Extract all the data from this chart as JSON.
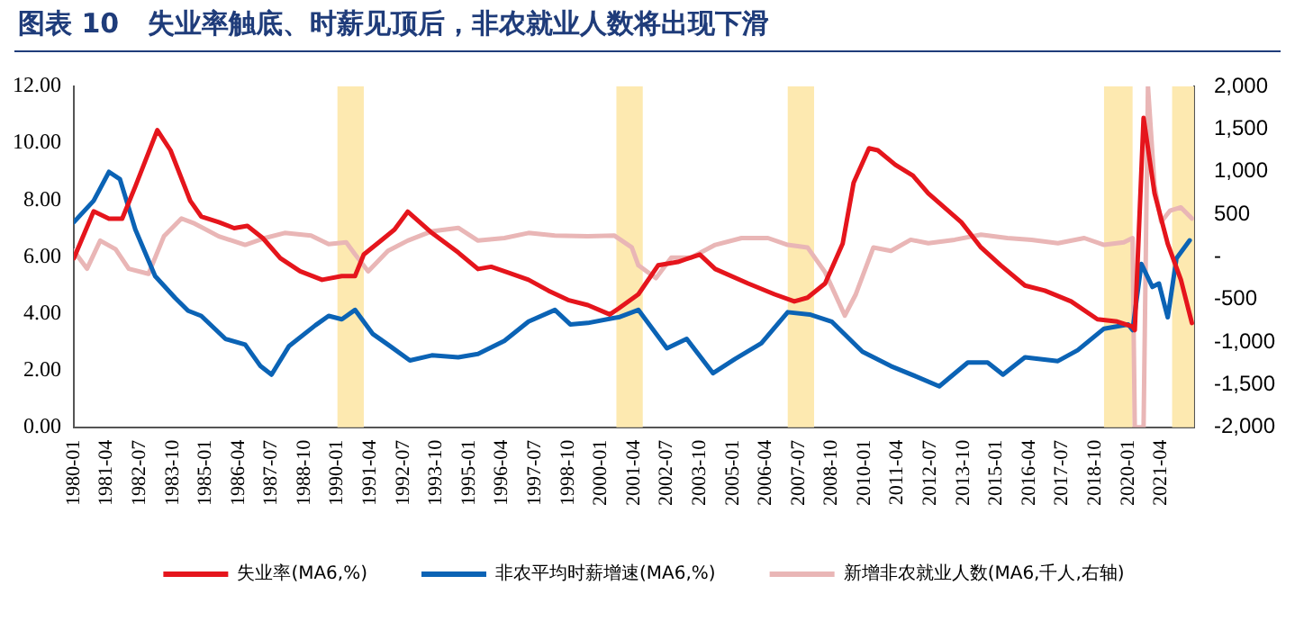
{
  "chart_data": {
    "type": "line",
    "title": "图表 10   失业率触底、时薪见顶后，非农就业人数将出现下滑",
    "xlim": [
      "1980-01",
      "2022-07"
    ],
    "xticks": [
      "1980-01",
      "1981-04",
      "1982-07",
      "1983-10",
      "1985-01",
      "1986-04",
      "1987-07",
      "1988-10",
      "1990-01",
      "1991-04",
      "1992-07",
      "1993-10",
      "1995-01",
      "1996-04",
      "1997-07",
      "1998-10",
      "2000-01",
      "2001-04",
      "2002-07",
      "2003-10",
      "2005-01",
      "2006-04",
      "2007-07",
      "2008-10",
      "2010-01",
      "2011-04",
      "2012-07",
      "2013-10",
      "2015-01",
      "2016-04",
      "2017-07",
      "2018-10",
      "2020-01",
      "2021-04"
    ],
    "ylim": [
      0,
      12
    ],
    "yticks": [
      {
        "value": 0,
        "label": "0.00"
      },
      {
        "value": 2,
        "label": "2.00"
      },
      {
        "value": 4,
        "label": "4.00"
      },
      {
        "value": 6,
        "label": "6.00"
      },
      {
        "value": 8,
        "label": "8.00"
      },
      {
        "value": 10,
        "label": "10.00"
      },
      {
        "value": 12,
        "label": "12.00"
      }
    ],
    "y2lim": [
      -2000,
      2000
    ],
    "y2ticks": [
      {
        "value": -2000,
        "label": "-2,000"
      },
      {
        "value": -1500,
        "label": "-1,500"
      },
      {
        "value": -1000,
        "label": "-1,000"
      },
      {
        "value": -500,
        "label": "-500"
      },
      {
        "value": 0,
        "label": "-"
      },
      {
        "value": 500,
        "label": "500"
      },
      {
        "value": 1000,
        "label": "1,000"
      },
      {
        "value": 1500,
        "label": "1,500"
      },
      {
        "value": 2000,
        "label": "2,000"
      }
    ],
    "grid": false,
    "legend": "bottom",
    "marker": "none",
    "line_style": "solid",
    "bands": [
      {
        "axis": "x",
        "from": "1990-01",
        "to": "1991-01",
        "color": "#fde9b0"
      },
      {
        "axis": "x",
        "from": "2000-08",
        "to": "2001-08",
        "color": "#fde9b0"
      },
      {
        "axis": "x",
        "from": "2007-02",
        "to": "2008-02",
        "color": "#fde9b0"
      },
      {
        "axis": "x",
        "from": "2019-02",
        "to": "2020-03",
        "color": "#fde9b0"
      },
      {
        "axis": "x",
        "from": "2021-09",
        "to": "2022-07",
        "color": "#fde9b0"
      }
    ],
    "series": [
      {
        "name": "失业率(MA6,%)",
        "color": "#e5151c",
        "x": [
          "1980-01",
          "1980-10",
          "1981-05",
          "1981-11",
          "1982-05",
          "1983-03",
          "1983-09",
          "1984-06",
          "1984-11",
          "1985-07",
          "1986-02",
          "1986-08",
          "1987-03",
          "1987-11",
          "1988-08",
          "1989-06",
          "1990-03",
          "1990-09",
          "1991-01",
          "1991-09",
          "1992-03",
          "1992-09",
          "1993-08",
          "1994-08",
          "1995-05",
          "1995-11",
          "1996-07",
          "1997-04",
          "1998-01",
          "1998-10",
          "1999-07",
          "2000-05",
          "2000-09",
          "2001-06",
          "2002-03",
          "2002-12",
          "2003-10",
          "2004-05",
          "2005-08",
          "2006-08",
          "2007-05",
          "2007-11",
          "2008-07",
          "2009-03",
          "2009-08",
          "2010-03",
          "2010-07",
          "2011-03",
          "2011-11",
          "2012-06",
          "2013-09",
          "2014-06",
          "2015-03",
          "2016-02",
          "2016-11",
          "2017-11",
          "2018-11",
          "2019-08",
          "2020-03",
          "2020-04",
          "2020-08",
          "2021-01",
          "2021-07",
          "2022-01",
          "2022-06"
        ],
        "values": [
          5.95,
          7.6,
          7.34,
          7.34,
          8.48,
          10.46,
          9.75,
          7.97,
          7.42,
          7.22,
          7.01,
          7.09,
          6.66,
          5.95,
          5.49,
          5.19,
          5.32,
          5.32,
          6.08,
          6.58,
          6.96,
          7.59,
          6.84,
          6.15,
          5.57,
          5.65,
          5.44,
          5.19,
          4.81,
          4.48,
          4.3,
          3.97,
          4.18,
          4.68,
          5.7,
          5.82,
          6.08,
          5.57,
          5.06,
          4.68,
          4.43,
          4.56,
          5.06,
          6.46,
          8.61,
          9.82,
          9.75,
          9.24,
          8.86,
          8.23,
          7.22,
          6.33,
          5.7,
          4.99,
          4.81,
          4.43,
          3.8,
          3.72,
          3.54,
          3.42,
          10.89,
          8.23,
          6.46,
          5.19,
          3.67
        ]
      },
      {
        "name": "非农平均时薪增速(MA6,%)",
        "color": "#0b63b5",
        "x": [
          "1980-01",
          "1980-10",
          "1981-05",
          "1981-10",
          "1982-05",
          "1983-02",
          "1983-11",
          "1984-05",
          "1984-11",
          "1985-10",
          "1986-07",
          "1987-02",
          "1987-07",
          "1988-03",
          "1989-03",
          "1989-09",
          "1990-03",
          "1990-09",
          "1991-05",
          "1991-12",
          "1992-10",
          "1993-08",
          "1994-08",
          "1995-05",
          "1996-05",
          "1997-04",
          "1998-04",
          "1998-11",
          "1999-07",
          "2000-07",
          "2000-09",
          "2001-06",
          "2002-07",
          "2003-04",
          "2004-04",
          "2005-02",
          "2006-02",
          "2007-02",
          "2007-12",
          "2008-10",
          "2009-12",
          "2011-01",
          "2012-01",
          "2012-11",
          "2013-12",
          "2014-09",
          "2015-04",
          "2016-02",
          "2017-05",
          "2018-02",
          "2019-02",
          "2020-01",
          "2020-03",
          "2020-07",
          "2020-12",
          "2021-03",
          "2021-07",
          "2021-11",
          "2022-05"
        ],
        "values": [
          7.22,
          7.97,
          8.99,
          8.73,
          6.96,
          5.32,
          4.56,
          4.1,
          3.92,
          3.11,
          2.91,
          2.15,
          1.85,
          2.86,
          3.59,
          3.92,
          3.8,
          4.13,
          3.29,
          2.91,
          2.35,
          2.53,
          2.46,
          2.58,
          3.04,
          3.72,
          4.13,
          3.62,
          3.67,
          3.85,
          3.87,
          4.13,
          2.78,
          3.11,
          1.9,
          2.4,
          2.96,
          4.05,
          3.97,
          3.72,
          2.66,
          2.15,
          1.77,
          1.44,
          2.28,
          2.28,
          1.85,
          2.46,
          2.33,
          2.71,
          3.47,
          3.62,
          3.42,
          5.75,
          4.94,
          5.06,
          3.87,
          5.95,
          6.58
        ]
      },
      {
        "name": "新增非农就业人数(MA6,千人,右轴)",
        "color": "#e9b6b6",
        "axis": "y2",
        "x": [
          "1980-01",
          "1980-07",
          "1981-01",
          "1981-08",
          "1982-02",
          "1982-11",
          "1983-06",
          "1984-02",
          "1984-08",
          "1985-07",
          "1986-07",
          "1987-04",
          "1988-01",
          "1989-01",
          "1989-09",
          "1990-05",
          "1990-09",
          "1991-03",
          "1991-12",
          "1992-09",
          "1993-08",
          "1994-08",
          "1995-05",
          "1996-05",
          "1997-04",
          "1998-04",
          "1999-07",
          "2000-07",
          "2001-03",
          "2001-06",
          "2002-02",
          "2002-09",
          "2003-06",
          "2004-05",
          "2005-05",
          "2006-05",
          "2007-02",
          "2007-11",
          "2008-07",
          "2009-04",
          "2009-09",
          "2010-05",
          "2011-01",
          "2011-10",
          "2012-06",
          "2013-06",
          "2014-06",
          "2015-06",
          "2016-05",
          "2017-05",
          "2018-05",
          "2019-02",
          "2019-11",
          "2020-03",
          "2020-04",
          "2020-08",
          "2020-10",
          "2021-01",
          "2021-04",
          "2021-08",
          "2022-01",
          "2022-06"
        ],
        "values": [
          70,
          -140,
          190,
          90,
          -140,
          -200,
          240,
          450,
          390,
          240,
          140,
          220,
          280,
          250,
          150,
          170,
          30,
          -170,
          70,
          190,
          300,
          340,
          190,
          220,
          280,
          250,
          240,
          250,
          110,
          -100,
          -250,
          -10,
          -10,
          140,
          220,
          220,
          140,
          110,
          -180,
          -690,
          -440,
          110,
          70,
          200,
          160,
          200,
          260,
          220,
          200,
          160,
          220,
          140,
          170,
          220,
          -2000,
          -2000,
          2000,
          830,
          410,
          540,
          580,
          450
        ]
      }
    ]
  }
}
